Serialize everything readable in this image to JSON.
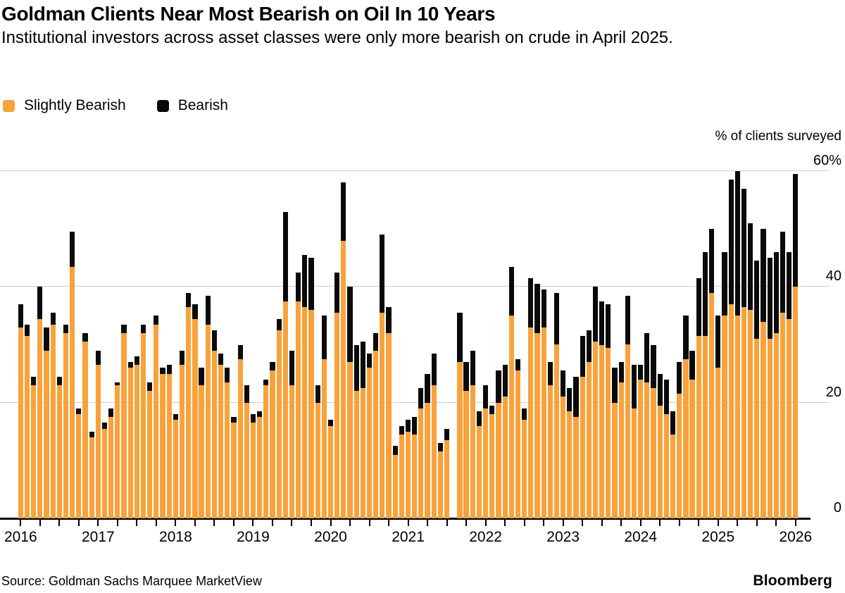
{
  "header": {
    "title": "Goldman Clients Near Most Bearish on Oil In 10 Years",
    "subtitle": "Institutional investors across asset classes were only more bearish on crude in April 2025."
  },
  "legend": {
    "slightly_bearish_label": "Slightly Bearish",
    "bearish_label": "Bearish"
  },
  "footer": {
    "source": "Source: Goldman Sachs Marquee MarketView",
    "brand": "Bloomberg"
  },
  "colors": {
    "slightly_bearish": "#F9A23B",
    "bearish": "#0a0a0a",
    "gridline": "#cfcfcf"
  },
  "chart_data": {
    "type": "bar",
    "stacked": true,
    "title": "Goldman Clients Near Most Bearish on Oil In 10 Years",
    "ylabel": "% of clients surveyed",
    "xlabel": "",
    "ylim": [
      0,
      60
    ],
    "grid": "horizontal",
    "legend_position": "top-left",
    "note": "Monthly survey, Aug 2021 missing (null)",
    "yticks": [
      {
        "value": 60,
        "label": "60%"
      },
      {
        "value": 40,
        "label": "40"
      },
      {
        "value": 20,
        "label": "20"
      },
      {
        "value": 0,
        "label": "0"
      }
    ],
    "year_ticks": [
      "2016",
      "2017",
      "2018",
      "2019",
      "2020",
      "2021",
      "2022",
      "2023",
      "2024",
      "2025",
      "2026"
    ],
    "months": [
      "2016-01",
      "2016-02",
      "2016-03",
      "2016-04",
      "2016-05",
      "2016-06",
      "2016-07",
      "2016-08",
      "2016-09",
      "2016-10",
      "2016-11",
      "2016-12",
      "2017-01",
      "2017-02",
      "2017-03",
      "2017-04",
      "2017-05",
      "2017-06",
      "2017-07",
      "2017-08",
      "2017-09",
      "2017-10",
      "2017-11",
      "2017-12",
      "2018-01",
      "2018-02",
      "2018-03",
      "2018-04",
      "2018-05",
      "2018-06",
      "2018-07",
      "2018-08",
      "2018-09",
      "2018-10",
      "2018-11",
      "2018-12",
      "2019-01",
      "2019-02",
      "2019-03",
      "2019-04",
      "2019-05",
      "2019-06",
      "2019-07",
      "2019-08",
      "2019-09",
      "2019-10",
      "2019-11",
      "2019-12",
      "2020-01",
      "2020-02",
      "2020-03",
      "2020-04",
      "2020-05",
      "2020-06",
      "2020-07",
      "2020-08",
      "2020-09",
      "2020-10",
      "2020-11",
      "2020-12",
      "2021-01",
      "2021-02",
      "2021-03",
      "2021-04",
      "2021-05",
      "2021-06",
      "2021-07",
      "2021-08",
      "2021-09",
      "2021-10",
      "2021-11",
      "2021-12",
      "2022-01",
      "2022-02",
      "2022-03",
      "2022-04",
      "2022-05",
      "2022-06",
      "2022-07",
      "2022-08",
      "2022-09",
      "2022-10",
      "2022-11",
      "2022-12",
      "2023-01",
      "2023-02",
      "2023-03",
      "2023-04",
      "2023-05",
      "2023-06",
      "2023-07",
      "2023-08",
      "2023-09",
      "2023-10",
      "2023-11",
      "2023-12",
      "2024-01",
      "2024-02",
      "2024-03",
      "2024-04",
      "2024-05",
      "2024-06",
      "2024-07",
      "2024-08",
      "2024-09",
      "2024-10",
      "2024-11",
      "2024-12",
      "2025-01",
      "2025-02",
      "2025-03",
      "2025-04",
      "2025-05",
      "2025-06",
      "2025-07",
      "2025-08",
      "2025-09",
      "2025-10",
      "2025-11",
      "2025-12",
      "2026-01"
    ],
    "series": [
      {
        "name": "Slightly Bearish",
        "values": [
          33,
          31.5,
          23,
          34.5,
          29,
          33.5,
          23,
          32,
          43.5,
          18,
          30.5,
          14,
          26.5,
          15.5,
          17.5,
          23,
          32,
          26,
          26.5,
          32,
          22,
          33.5,
          25,
          25,
          17,
          26.5,
          36.5,
          34.5,
          23,
          33.5,
          29,
          26.5,
          23.5,
          16.5,
          27.5,
          20,
          16.5,
          17.5,
          23,
          25.5,
          32.5,
          37.5,
          23,
          37.5,
          36.5,
          36,
          20,
          27.5,
          16,
          35.5,
          48,
          27,
          22,
          22.5,
          26,
          29,
          35.5,
          32,
          11,
          14.5,
          15,
          14.5,
          19,
          20,
          23,
          11.5,
          13.5,
          null,
          27,
          22,
          23,
          16,
          19,
          18,
          20,
          21,
          35,
          25.5,
          17,
          33,
          32,
          33,
          23,
          30,
          21,
          18.5,
          17.5,
          24.5,
          27,
          30.5,
          30,
          29.5,
          20,
          23.5,
          30,
          19,
          24,
          23.5,
          22.5,
          19.5,
          18,
          14.5,
          21.5,
          27.5,
          24,
          31.5,
          31.5,
          39,
          26,
          35,
          37,
          35,
          36.5,
          36,
          31,
          34,
          31,
          32,
          35.5,
          34.5,
          40
        ]
      },
      {
        "name": "Bearish",
        "values": [
          4,
          2,
          1.5,
          5.5,
          4,
          2,
          1.5,
          1.5,
          6,
          1,
          1.5,
          1,
          2.5,
          1,
          1.5,
          0.5,
          1.5,
          1,
          1.5,
          1.5,
          1.5,
          1.5,
          1,
          1.5,
          1,
          2.5,
          2.5,
          2.5,
          3,
          5,
          3.5,
          2,
          2.5,
          1,
          2.5,
          3,
          1.5,
          1,
          1,
          1.5,
          2,
          15.5,
          6,
          5,
          9,
          9,
          3,
          7.5,
          1,
          7,
          10,
          13,
          8,
          8,
          2.5,
          3,
          13.5,
          4.5,
          1.5,
          1.5,
          2,
          3,
          3.5,
          5,
          5.5,
          1.5,
          2,
          null,
          8.5,
          5,
          6,
          2.5,
          4,
          1.5,
          5.5,
          5.5,
          8.5,
          2,
          2,
          8.5,
          8.5,
          6.5,
          4,
          9,
          4.5,
          4,
          7,
          7,
          5.5,
          9.5,
          7.5,
          7.5,
          6,
          3.5,
          8.5,
          7.5,
          2.5,
          8.5,
          7.5,
          5.5,
          6,
          4,
          5.5,
          7.5,
          5,
          10,
          14.5,
          11,
          9,
          11,
          21.5,
          25,
          20.5,
          15,
          13.5,
          16,
          14,
          14,
          14,
          11.5,
          19.5
        ]
      }
    ]
  }
}
